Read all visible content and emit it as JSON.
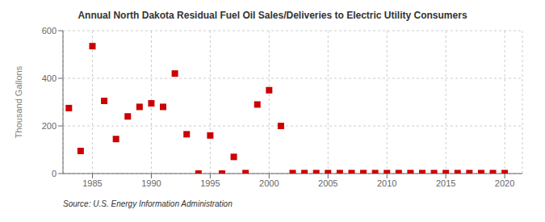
{
  "chart_data": {
    "type": "scatter",
    "title": "Annual North Dakota Residual Fuel Oil Sales/Deliveries to Electric Utility Consumers",
    "ylabel": "Thousand Gallons",
    "annotations": [
      "Source: U.S. Energy Information Administration"
    ],
    "x": [
      1983,
      1984,
      1985,
      1986,
      1987,
      1988,
      1989,
      1990,
      1991,
      1992,
      1993,
      1994,
      1995,
      1996,
      1997,
      1998,
      1999,
      2000,
      2001,
      2002,
      2003,
      2004,
      2005,
      2006,
      2007,
      2008,
      2009,
      2010,
      2011,
      2012,
      2013,
      2014,
      2015,
      2016,
      2017,
      2018,
      2019,
      2020
    ],
    "values": [
      275,
      95,
      535,
      305,
      145,
      240,
      280,
      295,
      280,
      420,
      165,
      0,
      160,
      0,
      70,
      2,
      290,
      350,
      200,
      2,
      2,
      2,
      2,
      2,
      2,
      2,
      2,
      2,
      2,
      2,
      2,
      2,
      2,
      2,
      2,
      2,
      2,
      2
    ],
    "color": "#cc0000",
    "marker": "square",
    "xlim": [
      1982.5,
      2021.5
    ],
    "ylim": [
      0,
      600
    ],
    "xticks": [
      1985,
      1990,
      1995,
      2000,
      2005,
      2010,
      2015,
      2020
    ],
    "yticks": [
      0,
      200,
      400,
      600
    ],
    "grid": true
  }
}
